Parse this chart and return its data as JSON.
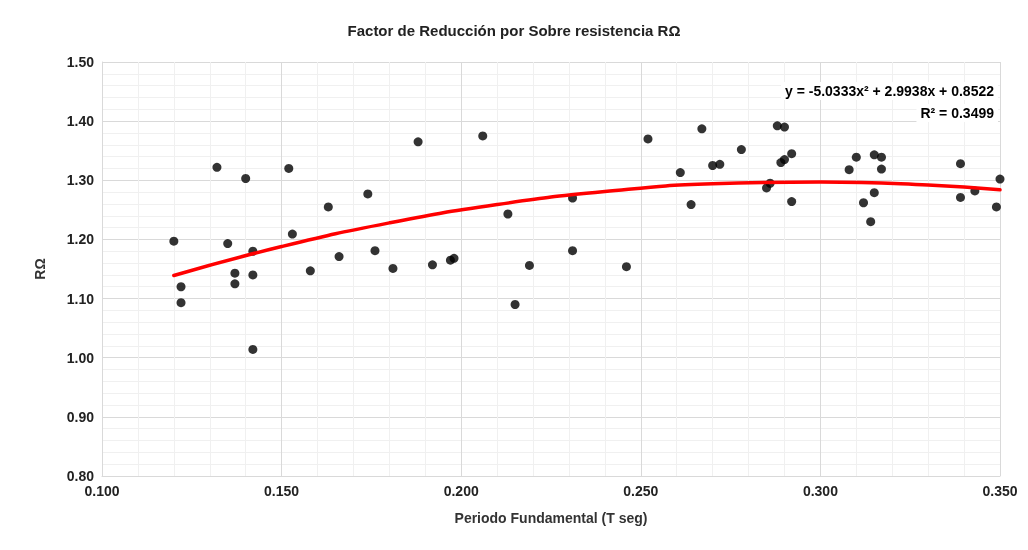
{
  "chart_data": {
    "type": "scatter",
    "title": "Factor de Reducción por Sobre resistencia RΩ",
    "xlabel": "Periodo Fundamental (T seg)",
    "ylabel": "RΩ",
    "annotations": [
      "y = -5.0333x² + 2.9938x + 0.8522",
      "R² = 0.3499"
    ],
    "xlim": [
      0.1,
      0.35
    ],
    "xticks": [
      {
        "value": 0.1,
        "label": "0.100"
      },
      {
        "value": 0.15,
        "label": "0.150"
      },
      {
        "value": 0.2,
        "label": "0.200"
      },
      {
        "value": 0.25,
        "label": "0.250"
      },
      {
        "value": 0.3,
        "label": "0.300"
      },
      {
        "value": 0.35,
        "label": "0.350"
      }
    ],
    "ylim": [
      0.8,
      1.5
    ],
    "yticks": [
      {
        "value": 0.8,
        "label": "0.80"
      },
      {
        "value": 0.9,
        "label": "0.90"
      },
      {
        "value": 1.0,
        "label": "1.00"
      },
      {
        "value": 1.1,
        "label": "1.10"
      },
      {
        "value": 1.2,
        "label": "1.20"
      },
      {
        "value": 1.3,
        "label": "1.30"
      },
      {
        "value": 1.4,
        "label": "1.40"
      },
      {
        "value": 1.5,
        "label": "1.50"
      }
    ],
    "grid": true,
    "marker": "circle",
    "series": [
      {
        "color": "#000000",
        "x": [
          0.12,
          0.122,
          0.122,
          0.132,
          0.135,
          0.137,
          0.137,
          0.14,
          0.142,
          0.142,
          0.142,
          0.152,
          0.153,
          0.158,
          0.163,
          0.166,
          0.174,
          0.176,
          0.181,
          0.188,
          0.192,
          0.197,
          0.198,
          0.206,
          0.213,
          0.215,
          0.219,
          0.231,
          0.231,
          0.246,
          0.252,
          0.261,
          0.264,
          0.267,
          0.27,
          0.272,
          0.278,
          0.285,
          0.286,
          0.288,
          0.289,
          0.29,
          0.29,
          0.292,
          0.292,
          0.308,
          0.31,
          0.312,
          0.314,
          0.315,
          0.315,
          0.317,
          0.317,
          0.339,
          0.339,
          0.343,
          0.349,
          0.35
        ],
        "values": [
          1.197,
          1.12,
          1.093,
          1.322,
          1.193,
          1.143,
          1.125,
          1.303,
          1.18,
          1.14,
          1.014,
          1.32,
          1.209,
          1.147,
          1.255,
          1.171,
          1.277,
          1.181,
          1.151,
          1.365,
          1.157,
          1.165,
          1.168,
          1.375,
          1.243,
          1.09,
          1.156,
          1.27,
          1.181,
          1.154,
          1.37,
          1.313,
          1.259,
          1.387,
          1.325,
          1.327,
          1.352,
          1.287,
          1.295,
          1.392,
          1.33,
          1.335,
          1.39,
          1.345,
          1.264,
          1.318,
          1.339,
          1.262,
          1.23,
          1.343,
          1.279,
          1.319,
          1.339,
          1.328,
          1.271,
          1.282,
          1.255,
          1.302
        ]
      },
      {
        "type": "line",
        "color": "#ff0000",
        "marker": "none",
        "line_style": "solid",
        "x": [
          0.12,
          0.15,
          0.18,
          0.21,
          0.24,
          0.27,
          0.3,
          0.33,
          0.35
        ],
        "values": [
          1.139,
          1.188,
          1.228,
          1.259,
          1.281,
          1.294,
          1.297,
          1.292,
          1.284
        ]
      }
    ]
  }
}
